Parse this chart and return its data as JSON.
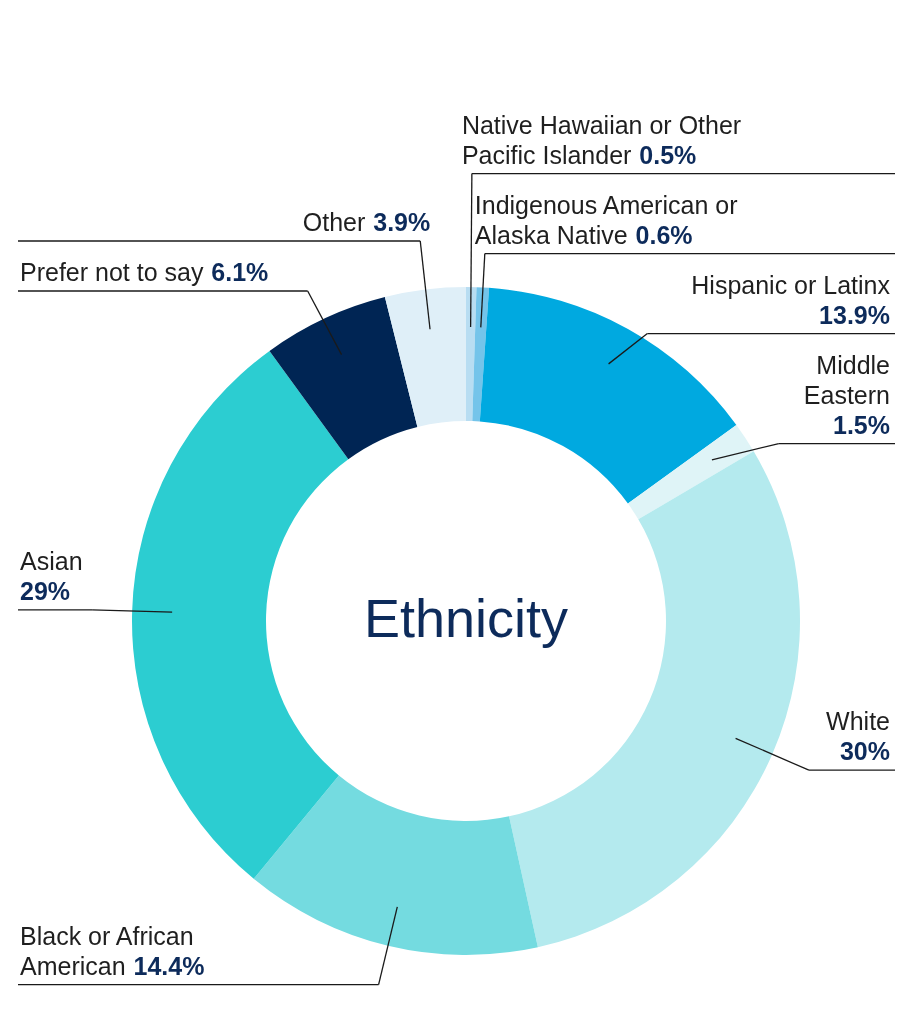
{
  "chart_data": {
    "type": "donut",
    "title": "Ethnicity",
    "categories": [
      "Native Hawaiian or Other Pacific Islander",
      "Indigenous American or Alaska Native",
      "Hispanic or Latinx",
      "Middle Eastern",
      "White",
      "Black or African American",
      "Asian",
      "Prefer not to say",
      "Other"
    ],
    "values": [
      0.5,
      0.6,
      13.9,
      1.5,
      30,
      14.4,
      29,
      6.1,
      3.9
    ],
    "value_labels": [
      "0.5%",
      "0.6%",
      "13.9%",
      "1.5%",
      "30%",
      "14.4%",
      "29%",
      "6.1%",
      "3.9%"
    ],
    "colors": [
      "#b8ddf2",
      "#74c4ea",
      "#00a9e0",
      "#dff4f7",
      "#b4eaee",
      "#74dbe0",
      "#2ccdd1",
      "#002554",
      "#dfeff8"
    ]
  }
}
